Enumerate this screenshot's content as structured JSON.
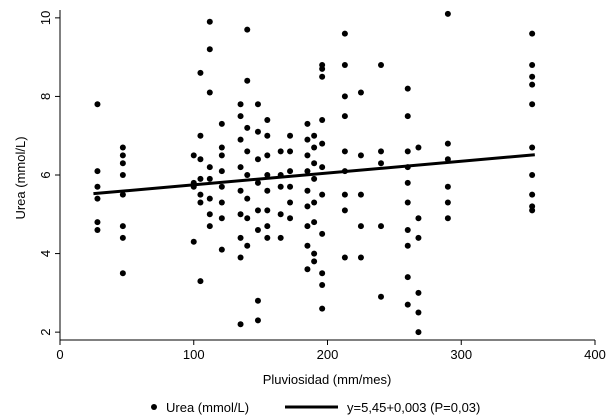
{
  "chart_data": {
    "type": "scatter",
    "xlabel": "Pluviosidad (mm/mes)",
    "ylabel": "Urea (mmol/L)",
    "xlim": [
      0,
      400
    ],
    "ylim": [
      1.8,
      10.2
    ],
    "x_ticks": [
      "0",
      "100",
      "200",
      "300",
      "400"
    ],
    "y_ticks": [
      "2",
      "4",
      "6",
      "8",
      "10"
    ],
    "grid": false,
    "legend_position": "bottom",
    "series": [
      {
        "name": "Urea (mmol/L)",
        "kind": "scatter",
        "color": "#000000",
        "points": [
          [
            28,
            7.8
          ],
          [
            28,
            6.1
          ],
          [
            28,
            5.7
          ],
          [
            28,
            5.4
          ],
          [
            28,
            4.8
          ],
          [
            28,
            4.6
          ],
          [
            47,
            6.7
          ],
          [
            47,
            6.5
          ],
          [
            47,
            6.3
          ],
          [
            47,
            6.0
          ],
          [
            47,
            5.5
          ],
          [
            47,
            4.7
          ],
          [
            47,
            4.4
          ],
          [
            47,
            3.5
          ],
          [
            100,
            6.5
          ],
          [
            100,
            5.8
          ],
          [
            100,
            5.7
          ],
          [
            100,
            4.3
          ],
          [
            105,
            8.6
          ],
          [
            105,
            7.0
          ],
          [
            105,
            6.4
          ],
          [
            105,
            5.9
          ],
          [
            105,
            5.5
          ],
          [
            105,
            5.3
          ],
          [
            105,
            3.3
          ],
          [
            112,
            9.9
          ],
          [
            112,
            9.2
          ],
          [
            112,
            8.1
          ],
          [
            112,
            6.2
          ],
          [
            112,
            5.9
          ],
          [
            112,
            5.4
          ],
          [
            112,
            5.0
          ],
          [
            112,
            4.7
          ],
          [
            121,
            7.3
          ],
          [
            121,
            6.7
          ],
          [
            121,
            6.5
          ],
          [
            121,
            6.1
          ],
          [
            121,
            5.7
          ],
          [
            121,
            5.3
          ],
          [
            121,
            4.9
          ],
          [
            121,
            4.1
          ],
          [
            135,
            7.8
          ],
          [
            135,
            7.5
          ],
          [
            135,
            6.9
          ],
          [
            135,
            6.2
          ],
          [
            135,
            5.6
          ],
          [
            135,
            5.0
          ],
          [
            135,
            4.4
          ],
          [
            135,
            3.9
          ],
          [
            135,
            2.2
          ],
          [
            140,
            9.7
          ],
          [
            140,
            8.4
          ],
          [
            140,
            7.2
          ],
          [
            140,
            6.6
          ],
          [
            140,
            6.0
          ],
          [
            140,
            5.4
          ],
          [
            140,
            4.9
          ],
          [
            140,
            4.2
          ],
          [
            148,
            7.8
          ],
          [
            148,
            7.1
          ],
          [
            148,
            6.4
          ],
          [
            148,
            5.8
          ],
          [
            148,
            5.1
          ],
          [
            148,
            4.6
          ],
          [
            148,
            2.8
          ],
          [
            148,
            2.3
          ],
          [
            155,
            7.4
          ],
          [
            155,
            7.0
          ],
          [
            155,
            6.5
          ],
          [
            155,
            6.0
          ],
          [
            155,
            5.6
          ],
          [
            155,
            5.1
          ],
          [
            155,
            4.7
          ],
          [
            155,
            4.4
          ],
          [
            165,
            6.6
          ],
          [
            165,
            6.0
          ],
          [
            165,
            5.7
          ],
          [
            165,
            5.0
          ],
          [
            165,
            4.4
          ],
          [
            172,
            7.0
          ],
          [
            172,
            6.6
          ],
          [
            172,
            6.1
          ],
          [
            172,
            5.7
          ],
          [
            172,
            5.3
          ],
          [
            172,
            4.9
          ],
          [
            185,
            7.3
          ],
          [
            185,
            6.9
          ],
          [
            185,
            6.5
          ],
          [
            185,
            6.1
          ],
          [
            185,
            5.6
          ],
          [
            185,
            5.2
          ],
          [
            185,
            4.7
          ],
          [
            185,
            4.2
          ],
          [
            185,
            3.6
          ],
          [
            190,
            7.0
          ],
          [
            190,
            6.7
          ],
          [
            190,
            6.3
          ],
          [
            190,
            5.9
          ],
          [
            190,
            5.3
          ],
          [
            190,
            4.8
          ],
          [
            190,
            4.0
          ],
          [
            190,
            3.8
          ],
          [
            196,
            8.8
          ],
          [
            196,
            8.7
          ],
          [
            196,
            8.5
          ],
          [
            196,
            7.4
          ],
          [
            196,
            6.8
          ],
          [
            196,
            6.2
          ],
          [
            196,
            5.5
          ],
          [
            196,
            4.5
          ],
          [
            196,
            3.5
          ],
          [
            196,
            3.2
          ],
          [
            196,
            2.6
          ],
          [
            213,
            9.6
          ],
          [
            213,
            8.8
          ],
          [
            213,
            8.0
          ],
          [
            213,
            7.5
          ],
          [
            213,
            6.6
          ],
          [
            213,
            6.1
          ],
          [
            213,
            5.5
          ],
          [
            213,
            5.1
          ],
          [
            213,
            3.9
          ],
          [
            225,
            8.1
          ],
          [
            225,
            6.5
          ],
          [
            225,
            5.5
          ],
          [
            225,
            4.7
          ],
          [
            225,
            3.9
          ],
          [
            240,
            8.8
          ],
          [
            240,
            6.6
          ],
          [
            240,
            6.3
          ],
          [
            240,
            4.7
          ],
          [
            240,
            2.9
          ],
          [
            260,
            8.2
          ],
          [
            260,
            7.5
          ],
          [
            260,
            6.6
          ],
          [
            260,
            6.2
          ],
          [
            260,
            5.8
          ],
          [
            260,
            5.3
          ],
          [
            260,
            4.6
          ],
          [
            260,
            4.2
          ],
          [
            260,
            3.4
          ],
          [
            260,
            2.7
          ],
          [
            268,
            6.7
          ],
          [
            268,
            4.9
          ],
          [
            268,
            4.4
          ],
          [
            268,
            3.0
          ],
          [
            268,
            2.5
          ],
          [
            268,
            2.0
          ],
          [
            290,
            10.1
          ],
          [
            290,
            6.8
          ],
          [
            290,
            6.4
          ],
          [
            290,
            5.7
          ],
          [
            290,
            5.3
          ],
          [
            290,
            4.9
          ],
          [
            353,
            9.6
          ],
          [
            353,
            8.8
          ],
          [
            353,
            8.5
          ],
          [
            353,
            8.3
          ],
          [
            353,
            7.8
          ],
          [
            353,
            6.7
          ],
          [
            353,
            6.0
          ],
          [
            353,
            5.5
          ],
          [
            353,
            5.2
          ],
          [
            353,
            5.1
          ]
        ]
      },
      {
        "name": "y=5,45+0,003 (P=0,03)",
        "kind": "line",
        "color": "#000000",
        "intercept": 5.45,
        "slope": 0.003,
        "x_range": [
          25,
          355
        ]
      }
    ]
  }
}
